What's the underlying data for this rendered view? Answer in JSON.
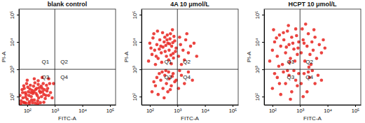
{
  "chart_data": [
    {
      "type": "scatter",
      "title": "blank control",
      "x_label": "FITC-A",
      "y_label": "PI-A",
      "log": true,
      "grid": false,
      "color": "#e8231f",
      "xlim": [
        50,
        160000
      ],
      "ylim": [
        50,
        160000
      ],
      "xticks": [
        {
          "value": 100,
          "label": "10²"
        },
        {
          "value": 1000,
          "label": "10³"
        },
        {
          "value": 10000,
          "label": "10⁴"
        },
        {
          "value": 100000,
          "label": "10⁵"
        }
      ],
      "yticks": [
        {
          "value": 100,
          "label": "10²"
        },
        {
          "value": 1000,
          "label": "10³"
        },
        {
          "value": 10000,
          "label": "10⁴"
        },
        {
          "value": 100000,
          "label": "10⁵"
        }
      ],
      "quadrant_gate": {
        "x": 1000,
        "y": 1000
      },
      "quadrant_labels": [
        "Q1",
        "Q2",
        "Q3",
        "Q4"
      ],
      "x": [
        60,
        70,
        80,
        90,
        100,
        110,
        120,
        140,
        160,
        180,
        200,
        230,
        260,
        300,
        350,
        400,
        450,
        520,
        600,
        65,
        75,
        85,
        95,
        105,
        130,
        150,
        170,
        190,
        220,
        250,
        280,
        320,
        380,
        420,
        500,
        700,
        55,
        68,
        78,
        88,
        115,
        125,
        135,
        145,
        175,
        210,
        240,
        270,
        330,
        360,
        480,
        550,
        650,
        800,
        58,
        72,
        92,
        118,
        155,
        195,
        240,
        300,
        400,
        100,
        180,
        250,
        350,
        600,
        900
      ],
      "values": [
        70,
        90,
        60,
        120,
        80,
        150,
        65,
        100,
        130,
        75,
        180,
        110,
        90,
        140,
        200,
        120,
        85,
        160,
        110,
        180,
        250,
        140,
        300,
        220,
        260,
        170,
        240,
        320,
        200,
        280,
        160,
        240,
        300,
        180,
        260,
        140,
        110,
        140,
        200,
        95,
        110,
        190,
        140,
        75,
        150,
        130,
        70,
        210,
        100,
        150,
        110,
        200,
        300,
        90,
        55,
        62,
        58,
        56,
        60,
        58,
        55,
        60,
        62,
        400,
        450,
        380,
        500,
        450,
        300
      ]
    },
    {
      "type": "scatter",
      "title": "4A  10 μmol/L",
      "x_label": "FITC-A",
      "y_label": "PI-A",
      "log": true,
      "grid": false,
      "color": "#e8231f",
      "xlim": [
        50,
        160000
      ],
      "ylim": [
        50,
        160000
      ],
      "xticks": [
        {
          "value": 100,
          "label": "10²"
        },
        {
          "value": 1000,
          "label": "10³"
        },
        {
          "value": 10000,
          "label": "10⁴"
        },
        {
          "value": 100000,
          "label": "10⁵"
        }
      ],
      "yticks": [
        {
          "value": 100,
          "label": "10²"
        },
        {
          "value": 1000,
          "label": "10³"
        },
        {
          "value": 10000,
          "label": "10⁴"
        },
        {
          "value": 100000,
          "label": "10⁵"
        }
      ],
      "quadrant_gate": {
        "x": 1000,
        "y": 1000
      },
      "quadrant_labels": [
        "Q1",
        "Q2",
        "Q3",
        "Q4"
      ],
      "x": [
        90,
        120,
        150,
        180,
        200,
        230,
        260,
        300,
        350,
        400,
        450,
        500,
        560,
        620,
        700,
        800,
        900,
        100,
        130,
        160,
        190,
        220,
        270,
        330,
        380,
        430,
        480,
        540,
        600,
        680,
        750,
        850,
        110,
        140,
        170,
        250,
        290,
        360,
        420,
        520,
        580,
        660,
        720,
        1100,
        1300,
        1600,
        2000,
        2500,
        3000,
        1200,
        1800,
        2200,
        4000,
        5000,
        1400,
        120,
        160,
        200,
        250,
        300,
        350,
        400,
        450,
        500,
        600,
        700,
        800,
        180,
        280,
        380,
        550,
        650,
        900,
        140,
        220,
        330,
        480,
        1100,
        1400,
        1800,
        2500,
        3500,
        1200
      ],
      "values": [
        2000,
        3500,
        5000,
        8000,
        2500,
        12000,
        4000,
        6500,
        15000,
        3000,
        9000,
        5000,
        20000,
        7000,
        3800,
        11000,
        6000,
        9000,
        14000,
        1500,
        25000,
        5500,
        1800,
        10000,
        7500,
        18000,
        2200,
        13000,
        1600,
        9500,
        16000,
        4500,
        6000,
        20000,
        3000,
        7000,
        22000,
        4500,
        12000,
        8500,
        3300,
        28000,
        2600,
        3000,
        8000,
        5000,
        12000,
        4000,
        7000,
        15000,
        2200,
        20000,
        9000,
        3000,
        1500,
        150,
        250,
        120,
        400,
        200,
        600,
        300,
        150,
        450,
        250,
        700,
        350,
        500,
        800,
        900,
        180,
        550,
        400,
        350,
        700,
        90,
        800,
        200,
        600,
        300,
        800,
        400,
        900
      ]
    },
    {
      "type": "scatter",
      "title": "HCPT  10 μmol/L",
      "x_label": "FITC-A",
      "y_label": "PI-A",
      "log": true,
      "grid": false,
      "color": "#e8231f",
      "xlim": [
        50,
        160000
      ],
      "ylim": [
        50,
        160000
      ],
      "xticks": [
        {
          "value": 100,
          "label": "10²"
        },
        {
          "value": 1000,
          "label": "10³"
        },
        {
          "value": 10000,
          "label": "10⁴"
        },
        {
          "value": 100000,
          "label": "10⁵"
        }
      ],
      "yticks": [
        {
          "value": 100,
          "label": "10²"
        },
        {
          "value": 1000,
          "label": "10³"
        },
        {
          "value": 10000,
          "label": "10⁴"
        },
        {
          "value": 100000,
          "label": "10⁵"
        }
      ],
      "quadrant_gate": {
        "x": 1000,
        "y": 1000
      },
      "quadrant_labels": [
        "Q1",
        "Q2",
        "Q3",
        "Q4"
      ],
      "x": [
        80,
        100,
        120,
        150,
        180,
        200,
        230,
        260,
        300,
        350,
        400,
        450,
        500,
        600,
        700,
        800,
        900,
        140,
        170,
        250,
        320,
        420,
        550,
        650,
        750,
        850,
        110,
        380,
        1100,
        1300,
        1500,
        1800,
        2000,
        2300,
        2700,
        3000,
        3500,
        4000,
        5000,
        6000,
        1200,
        1600,
        2500,
        7000,
        1400,
        3200,
        2100,
        8000,
        100,
        150,
        200,
        250,
        300,
        400,
        500,
        600,
        700,
        800,
        180,
        350,
        450,
        900,
        120,
        1100,
        1400,
        1800,
        2200,
        2800,
        3500,
        4500,
        1300,
        2000,
        6000
      ],
      "values": [
        2000,
        5000,
        10000,
        3000,
        18000,
        7000,
        1500,
        12000,
        4000,
        25000,
        8000,
        2500,
        15000,
        5500,
        30000,
        3500,
        10000,
        14000,
        1300,
        22000,
        6500,
        1800,
        9000,
        2000,
        17000,
        6000,
        28000,
        40000,
        4000,
        12000,
        2000,
        7000,
        20000,
        3500,
        10000,
        5000,
        15000,
        2500,
        8000,
        4000,
        30000,
        45000,
        1500,
        12000,
        9000,
        28000,
        1200,
        6000,
        200,
        500,
        120,
        800,
        300,
        600,
        150,
        900,
        400,
        250,
        300,
        900,
        80,
        700,
        700,
        300,
        700,
        150,
        500,
        900,
        300,
        600,
        100,
        800,
        400
      ]
    }
  ]
}
